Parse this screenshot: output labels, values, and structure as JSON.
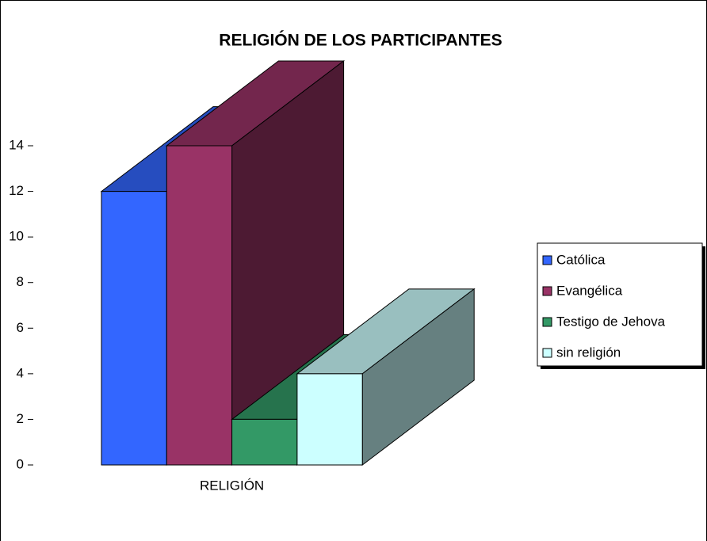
{
  "chart_data": {
    "type": "bar3d",
    "title": "RELIGIÓN DE LOS PARTICIPANTES",
    "categories": [
      "RELIGIÓN"
    ],
    "series": [
      {
        "name": "Católica",
        "color": "#3366ff",
        "values": [
          12
        ]
      },
      {
        "name": "Evangélica",
        "color": "#993366",
        "values": [
          14
        ]
      },
      {
        "name": "Testigo de Jehova",
        "color": "#339966",
        "values": [
          2
        ]
      },
      {
        "name": "sin religión",
        "color": "#ccffff",
        "values": [
          4
        ]
      }
    ],
    "ylim": [
      0,
      14
    ],
    "yticks": [
      0,
      2,
      4,
      6,
      8,
      10,
      12,
      14
    ],
    "legend": "right"
  }
}
